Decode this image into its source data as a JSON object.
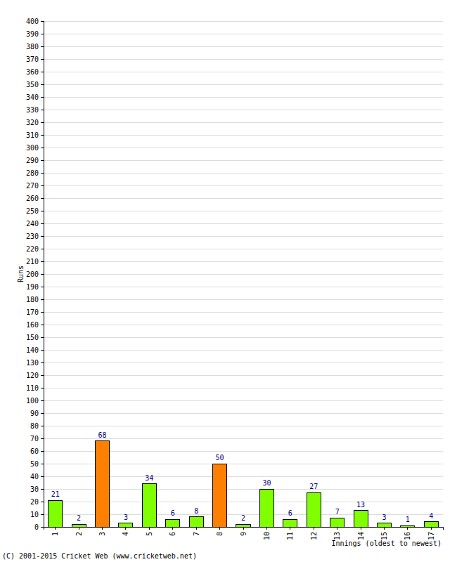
{
  "chart_data": {
    "type": "bar",
    "y_label": "Runs",
    "x_label": "Innings (oldest to newest)",
    "annotations": [
      "(C) 2001-2015 Cricket Web (www.cricketweb.net)"
    ],
    "categories": [
      "1",
      "2",
      "3",
      "4",
      "5",
      "6",
      "7",
      "8",
      "9",
      "10",
      "11",
      "12",
      "13",
      "14",
      "15",
      "16",
      "17"
    ],
    "values": [
      21,
      2,
      68,
      3,
      34,
      6,
      8,
      50,
      2,
      30,
      6,
      27,
      7,
      13,
      3,
      1,
      4
    ],
    "colors": [
      "#80ff00",
      "#80ff00",
      "#ff8000",
      "#80ff00",
      "#80ff00",
      "#80ff00",
      "#80ff00",
      "#ff8000",
      "#80ff00",
      "#80ff00",
      "#80ff00",
      "#80ff00",
      "#80ff00",
      "#80ff00",
      "#80ff00",
      "#80ff00",
      "#80ff00"
    ],
    "ylim": [
      0,
      400
    ],
    "yticks": [
      0,
      10,
      20,
      30,
      40,
      50,
      60,
      70,
      80,
      90,
      100,
      110,
      120,
      130,
      140,
      150,
      160,
      170,
      180,
      190,
      200,
      210,
      220,
      230,
      240,
      250,
      260,
      270,
      280,
      290,
      300,
      310,
      320,
      330,
      340,
      350,
      360,
      370,
      380,
      390,
      400
    ],
    "grid": true,
    "data_labels": true
  }
}
